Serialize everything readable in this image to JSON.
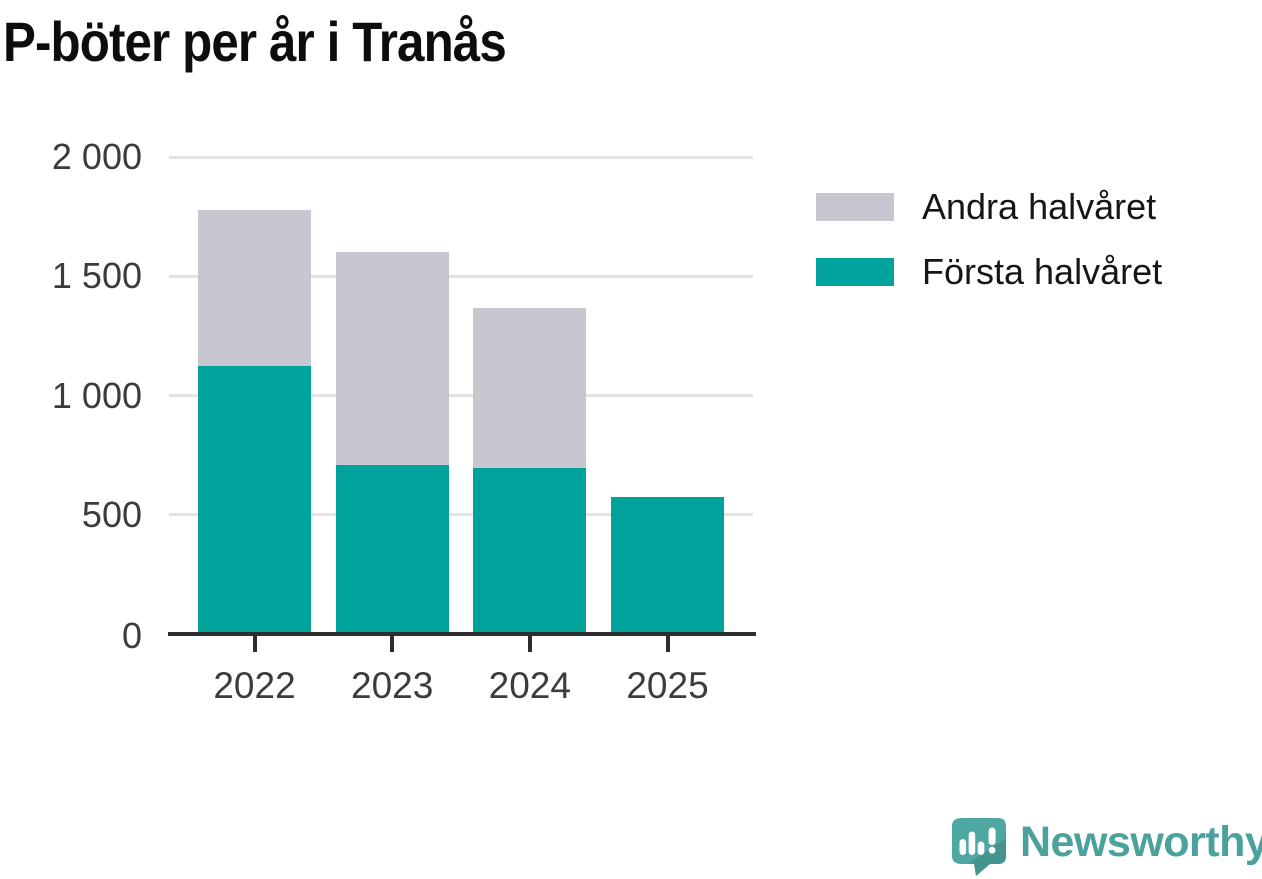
{
  "title": "P-böter per år i Tranås",
  "legend": [
    {
      "label": "Andra halvåret",
      "color": "#c8c6cf"
    },
    {
      "label": "Första halvåret",
      "color": "#00a39b"
    }
  ],
  "chart_data": {
    "type": "bar",
    "stacked": true,
    "title": "P-böter per år i Tranås",
    "categories": [
      "2022",
      "2023",
      "2024",
      "2025"
    ],
    "series": [
      {
        "name": "Första halvåret",
        "color": "#00a39b",
        "values": [
          1120,
          705,
          690,
          570
        ]
      },
      {
        "name": "Andra halvåret",
        "color": "#c8c6cf",
        "values": [
          655,
          895,
          670,
          0
        ]
      }
    ],
    "totals": [
      1775,
      1600,
      1360,
      570
    ],
    "xlabel": "",
    "ylabel": "",
    "ylim": [
      0,
      2000
    ],
    "yticks": [
      0,
      500,
      1000,
      1500,
      2000
    ],
    "ytick_labels": [
      "0",
      "500",
      "1 000",
      "1 500",
      "2 000"
    ],
    "grid": "horizontal",
    "grid_color": "#e3e2e4",
    "axis_color": "#2d2d2d",
    "tick_label_color": "#3c3c3c",
    "legend_position": "right-top"
  },
  "branding": {
    "logo_text": "Newsworthy",
    "logo_icon": "newsworthy-speech-bubble-bar-chart-icon",
    "logo_color": "#4ba29c"
  }
}
